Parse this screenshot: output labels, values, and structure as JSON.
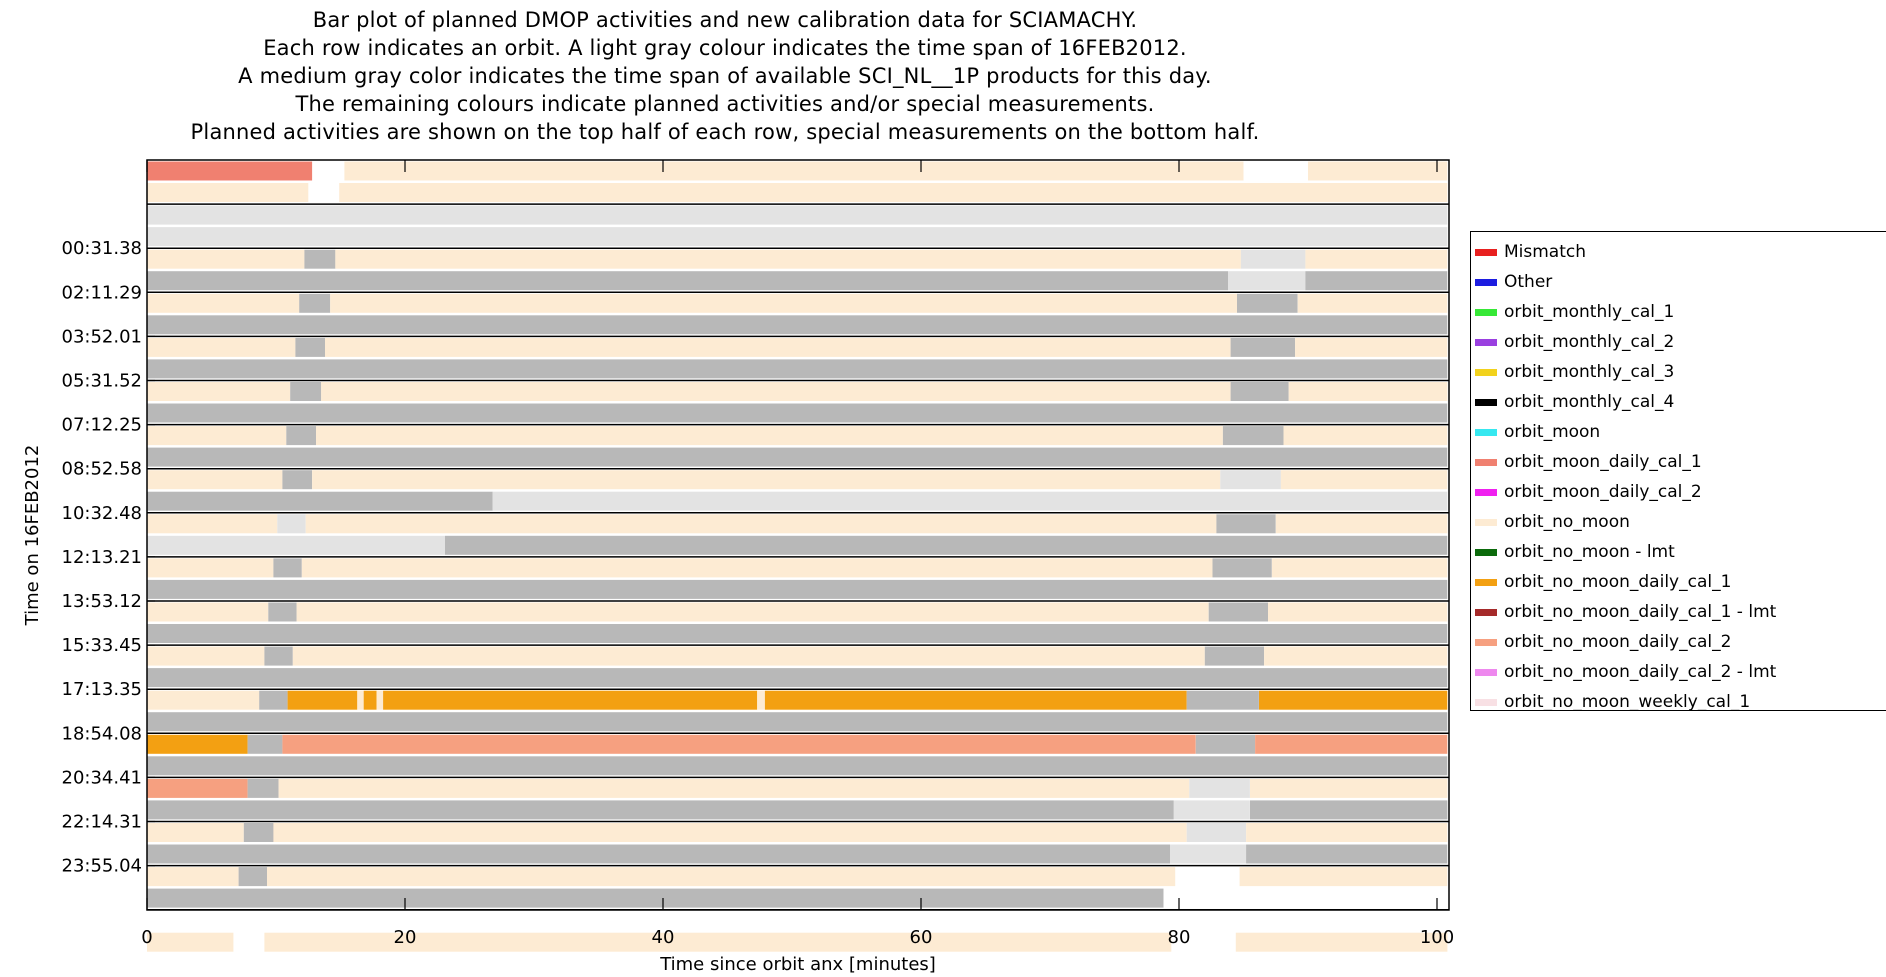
{
  "title_lines": [
    "Bar plot of planned DMOP activities and new calibration data for SCIAMACHY.",
    "Each row indicates an orbit. A light gray colour indicates the time span of 16FEB2012.",
    "A medium gray color indicates the time span of available SCI_NL__1P products for this day.",
    "The remaining colours indicate planned activities and/or special measurements.",
    "Planned activities are shown on the top half of each row, special measurements on the bottom half."
  ],
  "colors": {
    "Mismatch": "#e8201f",
    "Other": "#1c1ce0",
    "orbit_monthly_cal_1": "#36e836",
    "orbit_monthly_cal_2": "#9a40e0",
    "orbit_monthly_cal_3": "#f2d21c",
    "orbit_monthly_cal_4": "#000000",
    "orbit_moon": "#36e8f0",
    "orbit_moon_daily_cal_1": "#f08070",
    "orbit_moon_daily_cal_2": "#f020f0",
    "orbit_no_moon": "#fdebd3",
    "orbit_no_moon - lmt": "#0b6a0b",
    "orbit_no_moon_daily_cal_1": "#f3a012",
    "orbit_no_moon_daily_cal_1 - lmt": "#a52a2a",
    "orbit_no_moon_daily_cal_2": "#f6a080",
    "orbit_no_moon_daily_cal_2 - lmt": "#ee88ee",
    "orbit_no_moon_weekly_cal_1": "#f8e0e4",
    "light_gray": "#e3e3e3",
    "medium_gray": "#b8b8b8"
  },
  "chart_data": {
    "type": "bar",
    "xlabel": "Time since orbit anx [minutes]",
    "ylabel": "Time on 16FEB2012",
    "xlim": [
      0,
      100.8
    ],
    "xticks": [
      "0",
      "20",
      "40",
      "60",
      "80",
      "100"
    ],
    "xtick_values": [
      0,
      20,
      40,
      60,
      80,
      100
    ],
    "yticks": [
      "00:31.38",
      "02:11.29",
      "03:52.01",
      "05:31.52",
      "07:12.25",
      "08:52.58",
      "10:32.48",
      "12:13.21",
      "13:53.12",
      "15:33.45",
      "17:13.35",
      "18:54.08",
      "20:34.41",
      "22:14.31",
      "23:55.04"
    ],
    "legend": [
      "Mismatch",
      "Other",
      "orbit_monthly_cal_1",
      "orbit_monthly_cal_2",
      "orbit_monthly_cal_3",
      "orbit_monthly_cal_4",
      "orbit_moon",
      "orbit_moon_daily_cal_1",
      "orbit_moon_daily_cal_2",
      "orbit_no_moon",
      "orbit_no_moon - lmt",
      "orbit_no_moon_daily_cal_1",
      "orbit_no_moon_daily_cal_1 - lmt",
      "orbit_no_moon_daily_cal_2",
      "orbit_no_moon_daily_cal_2 - lmt",
      "orbit_no_moon_weekly_cal_1"
    ],
    "legend_placement": "right",
    "grid": false,
    "rows": [
      {
        "top": [
          [
            0,
            12.8,
            "orbit_moon_daily_cal_1"
          ],
          [
            15.3,
            85,
            "orbit_no_moon"
          ],
          [
            90,
            100.8,
            "orbit_no_moon"
          ]
        ],
        "bottom": [
          [
            0,
            12.5,
            "orbit_no_moon"
          ],
          [
            14.9,
            100.8,
            "orbit_no_moon"
          ]
        ]
      },
      {
        "top": [
          [
            0,
            100.8,
            "light_gray"
          ]
        ],
        "bottom": [
          [
            0,
            100.8,
            "light_gray"
          ]
        ]
      },
      {
        "top": [
          [
            0,
            12.2,
            "orbit_no_moon"
          ],
          [
            12.2,
            14.6,
            "medium_gray"
          ],
          [
            14.6,
            84.8,
            "orbit_no_moon"
          ],
          [
            84.8,
            89.8,
            "light_gray"
          ],
          [
            89.8,
            100.8,
            "orbit_no_moon"
          ]
        ],
        "bottom": [
          [
            0,
            83.8,
            "medium_gray"
          ],
          [
            83.8,
            89.8,
            "light_gray"
          ],
          [
            89.8,
            100.8,
            "medium_gray"
          ]
        ]
      },
      {
        "top": [
          [
            0,
            11.8,
            "orbit_no_moon"
          ],
          [
            11.8,
            14.2,
            "medium_gray"
          ],
          [
            14.2,
            84.5,
            "orbit_no_moon"
          ],
          [
            84.5,
            89.2,
            "medium_gray"
          ],
          [
            89.2,
            100.8,
            "orbit_no_moon"
          ]
        ],
        "bottom": [
          [
            0,
            100.8,
            "medium_gray"
          ]
        ]
      },
      {
        "top": [
          [
            0,
            11.5,
            "orbit_no_moon"
          ],
          [
            11.5,
            13.8,
            "medium_gray"
          ],
          [
            13.8,
            84,
            "orbit_no_moon"
          ],
          [
            84,
            89,
            "medium_gray"
          ],
          [
            89,
            100.8,
            "orbit_no_moon"
          ]
        ],
        "bottom": [
          [
            0,
            100.8,
            "medium_gray"
          ]
        ]
      },
      {
        "top": [
          [
            0,
            11.1,
            "orbit_no_moon"
          ],
          [
            11.1,
            13.5,
            "medium_gray"
          ],
          [
            13.5,
            84,
            "orbit_no_moon"
          ],
          [
            84,
            88.5,
            "medium_gray"
          ],
          [
            88.5,
            100.8,
            "orbit_no_moon"
          ]
        ],
        "bottom": [
          [
            0,
            100.8,
            "medium_gray"
          ]
        ]
      },
      {
        "top": [
          [
            0,
            10.8,
            "orbit_no_moon"
          ],
          [
            10.8,
            13.1,
            "medium_gray"
          ],
          [
            13.1,
            83.4,
            "orbit_no_moon"
          ],
          [
            83.4,
            88.1,
            "medium_gray"
          ],
          [
            88.1,
            100.8,
            "orbit_no_moon"
          ]
        ],
        "bottom": [
          [
            0,
            100.8,
            "medium_gray"
          ]
        ]
      },
      {
        "top": [
          [
            0,
            10.5,
            "orbit_no_moon"
          ],
          [
            10.5,
            12.8,
            "medium_gray"
          ],
          [
            12.8,
            83.2,
            "orbit_no_moon"
          ],
          [
            83.2,
            87.9,
            "light_gray"
          ],
          [
            87.9,
            100.8,
            "orbit_no_moon"
          ]
        ],
        "bottom": [
          [
            0,
            26.8,
            "medium_gray"
          ],
          [
            26.8,
            100.8,
            "light_gray"
          ]
        ]
      },
      {
        "top": [
          [
            0,
            10.1,
            "orbit_no_moon"
          ],
          [
            10.1,
            12.3,
            "light_gray"
          ],
          [
            12.3,
            82.9,
            "orbit_no_moon"
          ],
          [
            82.9,
            87.5,
            "medium_gray"
          ],
          [
            87.5,
            100.8,
            "orbit_no_moon"
          ]
        ],
        "bottom": [
          [
            0,
            23.1,
            "light_gray"
          ],
          [
            23.1,
            100.8,
            "medium_gray"
          ]
        ]
      },
      {
        "top": [
          [
            0,
            9.8,
            "orbit_no_moon"
          ],
          [
            9.8,
            12,
            "medium_gray"
          ],
          [
            12,
            82.6,
            "orbit_no_moon"
          ],
          [
            82.6,
            87.2,
            "medium_gray"
          ],
          [
            87.2,
            100.8,
            "orbit_no_moon"
          ]
        ],
        "bottom": [
          [
            0,
            100.8,
            "medium_gray"
          ]
        ]
      },
      {
        "top": [
          [
            0,
            9.4,
            "orbit_no_moon"
          ],
          [
            9.4,
            11.6,
            "medium_gray"
          ],
          [
            11.6,
            82.3,
            "orbit_no_moon"
          ],
          [
            82.3,
            86.9,
            "medium_gray"
          ],
          [
            86.9,
            100.8,
            "orbit_no_moon"
          ]
        ],
        "bottom": [
          [
            0,
            100.8,
            "medium_gray"
          ]
        ]
      },
      {
        "top": [
          [
            0,
            9.1,
            "orbit_no_moon"
          ],
          [
            9.1,
            11.3,
            "medium_gray"
          ],
          [
            11.3,
            82,
            "orbit_no_moon"
          ],
          [
            82,
            86.6,
            "medium_gray"
          ],
          [
            86.6,
            100.8,
            "orbit_no_moon"
          ]
        ],
        "bottom": [
          [
            0,
            100.8,
            "medium_gray"
          ]
        ]
      },
      {
        "top": [
          [
            0,
            8.7,
            "orbit_no_moon"
          ],
          [
            8.7,
            10.9,
            "medium_gray"
          ],
          [
            10.9,
            16.3,
            "orbit_no_moon_daily_cal_1"
          ],
          [
            16.3,
            16.8,
            "orbit_no_moon"
          ],
          [
            16.8,
            17.8,
            "orbit_no_moon_daily_cal_1"
          ],
          [
            17.8,
            18.3,
            "orbit_no_moon"
          ],
          [
            18.3,
            47.3,
            "orbit_no_moon_daily_cal_1"
          ],
          [
            47.3,
            47.9,
            "orbit_no_moon"
          ],
          [
            47.9,
            80.6,
            "orbit_no_moon_daily_cal_1"
          ],
          [
            80.6,
            86.2,
            "medium_gray"
          ],
          [
            86.2,
            100.8,
            "orbit_no_moon_daily_cal_1"
          ]
        ],
        "bottom": [
          [
            0,
            100.8,
            "medium_gray"
          ]
        ]
      },
      {
        "top": [
          [
            0,
            7.8,
            "orbit_no_moon_daily_cal_1"
          ],
          [
            7.8,
            10.5,
            "medium_gray"
          ],
          [
            10.5,
            81.3,
            "orbit_no_moon_daily_cal_2"
          ],
          [
            81.3,
            85.9,
            "medium_gray"
          ],
          [
            85.9,
            100.8,
            "orbit_no_moon_daily_cal_2"
          ]
        ],
        "bottom": [
          [
            0,
            100.8,
            "medium_gray"
          ]
        ]
      },
      {
        "top": [
          [
            0,
            7.8,
            "orbit_no_moon_daily_cal_2"
          ],
          [
            7.8,
            10.2,
            "medium_gray"
          ],
          [
            10.2,
            80.8,
            "orbit_no_moon"
          ],
          [
            80.8,
            85.5,
            "light_gray"
          ],
          [
            85.5,
            100.8,
            "orbit_no_moon"
          ]
        ],
        "bottom": [
          [
            0,
            79.6,
            "medium_gray"
          ],
          [
            79.6,
            85.5,
            "light_gray"
          ],
          [
            85.5,
            100.8,
            "medium_gray"
          ]
        ]
      },
      {
        "top": [
          [
            0,
            7.5,
            "orbit_no_moon"
          ],
          [
            7.5,
            9.8,
            "medium_gray"
          ],
          [
            9.8,
            80.6,
            "orbit_no_moon"
          ],
          [
            80.6,
            85.2,
            "light_gray"
          ],
          [
            85.2,
            100.8,
            "orbit_no_moon"
          ]
        ],
        "bottom": [
          [
            0,
            79.3,
            "medium_gray"
          ],
          [
            79.3,
            85.2,
            "light_gray"
          ],
          [
            85.2,
            100.8,
            "medium_gray"
          ]
        ]
      },
      {
        "top": [
          [
            0,
            7.1,
            "orbit_no_moon"
          ],
          [
            7.1,
            9.3,
            "medium_gray"
          ],
          [
            9.3,
            79.7,
            "orbit_no_moon"
          ],
          [
            84.7,
            100.8,
            "orbit_no_moon"
          ]
        ],
        "bottom": [
          [
            0,
            78.8,
            "medium_gray"
          ]
        ]
      },
      {
        "top": [],
        "bottom": [
          [
            0,
            6.7,
            "orbit_no_moon"
          ],
          [
            9.1,
            79.4,
            "orbit_no_moon"
          ],
          [
            84.4,
            100.8,
            "orbit_no_moon"
          ]
        ]
      }
    ]
  }
}
